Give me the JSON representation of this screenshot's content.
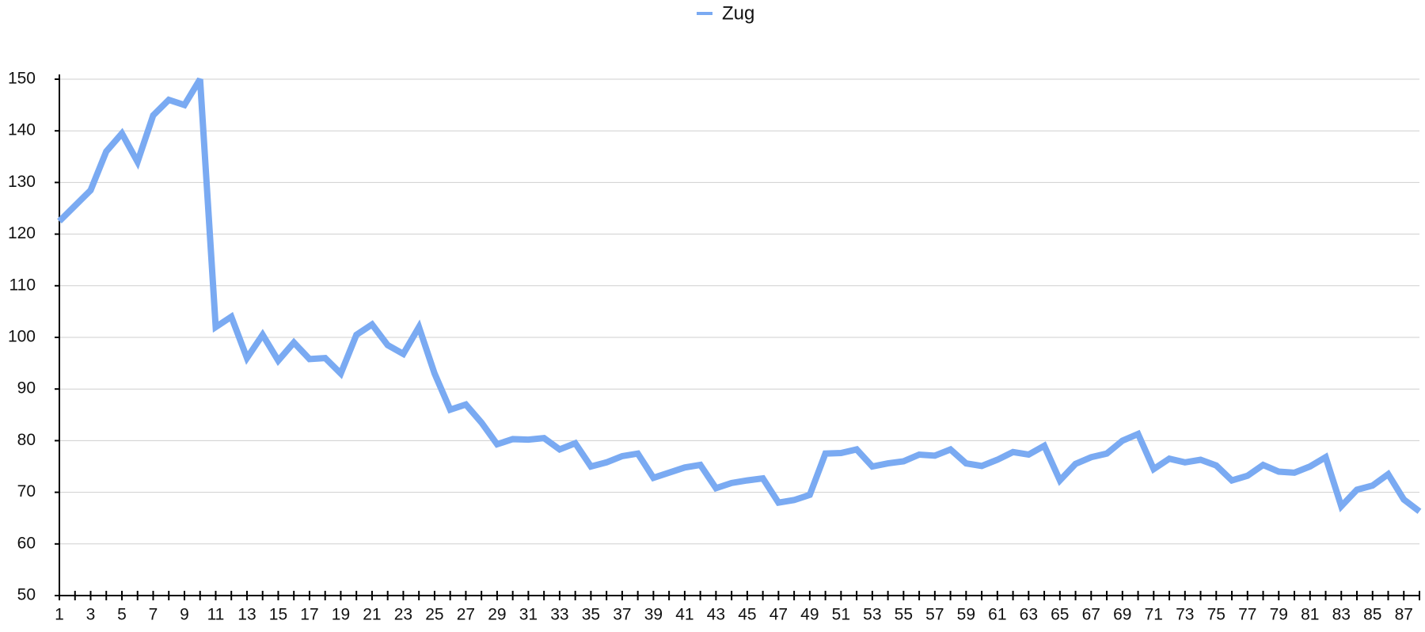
{
  "chart_data": {
    "type": "line",
    "categories": [
      "1",
      null,
      "3",
      null,
      "5",
      null,
      "7",
      null,
      "9",
      null,
      "11",
      null,
      "13",
      null,
      "15",
      null,
      "17",
      null,
      "19",
      null,
      "21",
      null,
      "23",
      null,
      "25",
      null,
      "27",
      null,
      "29",
      null,
      "31",
      null,
      "33",
      null,
      "35",
      null,
      "37",
      null,
      "39",
      null,
      "41",
      null,
      "43",
      null,
      "45",
      null,
      "47",
      null,
      "49",
      null,
      "51",
      null,
      "53",
      null,
      "55",
      null,
      "57",
      null,
      "59",
      null,
      "61",
      null,
      "63",
      null,
      "65",
      null,
      "67",
      null,
      "69",
      null,
      "71",
      null,
      "73",
      null,
      "75",
      null,
      "77",
      null,
      "79",
      null,
      "81",
      null,
      "83",
      null,
      "85",
      null,
      "87",
      null
    ],
    "series": [
      {
        "name": "Zug",
        "color": "#7aaaf2",
        "values": [
          122.5,
          125.5,
          128.5,
          136,
          139.5,
          134,
          143,
          146,
          145,
          150,
          102,
          104,
          96,
          100.5,
          95.5,
          99,
          95.8,
          96,
          93,
          100.5,
          102.5,
          98.5,
          96.8,
          102,
          93,
          86,
          87,
          83.5,
          79.3,
          80.3,
          80.2,
          80.5,
          78.3,
          79.5,
          75,
          75.8,
          77,
          77.5,
          72.8,
          73.8,
          74.8,
          75.3,
          70.8,
          71.8,
          72.3,
          72.7,
          68,
          68.5,
          69.5,
          77.5,
          77.6,
          78.3,
          75,
          75.6,
          76,
          77.3,
          77.1,
          78.3,
          75.6,
          75.1,
          76.3,
          77.8,
          77.3,
          79,
          72.3,
          75.5,
          76.8,
          77.5,
          80,
          81.3,
          74.5,
          76.5,
          75.8,
          76.3,
          75.2,
          72.3,
          73.2,
          75.3,
          74,
          73.8,
          75,
          76.8,
          67.3,
          70.5,
          71.3,
          73.5,
          68.6,
          66.3
        ]
      }
    ],
    "ylim": [
      50,
      150
    ],
    "yticks": [
      50,
      60,
      70,
      80,
      90,
      100,
      110,
      120,
      130,
      140,
      150
    ],
    "grid": true,
    "legend": "top"
  }
}
